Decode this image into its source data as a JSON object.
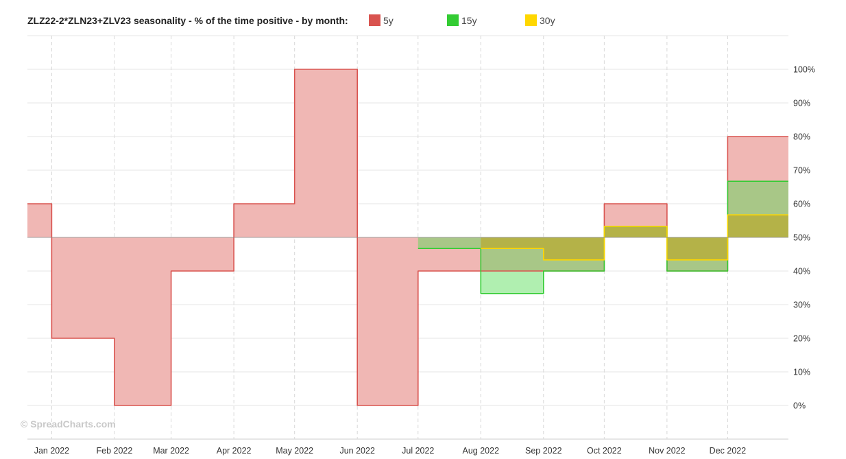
{
  "chart_data": {
    "type": "area",
    "title": "ZLZ22-2*ZLN23+ZLV23 seasonality - % of the time positive - by month:",
    "baseline": 50,
    "ylim": [
      -10,
      110
    ],
    "yticks": [
      0,
      10,
      20,
      30,
      40,
      50,
      60,
      70,
      80,
      90,
      100
    ],
    "y_unit": "%",
    "x_range": [
      "2021-12-20",
      "2022-12-31"
    ],
    "x_ticks": [
      {
        "date": "2022-01-01",
        "label": "Jan 2022"
      },
      {
        "date": "2022-02-01",
        "label": "Feb 2022"
      },
      {
        "date": "2022-03-01",
        "label": "Mar 2022"
      },
      {
        "date": "2022-04-01",
        "label": "Apr 2022"
      },
      {
        "date": "2022-05-01",
        "label": "May 2022"
      },
      {
        "date": "2022-06-01",
        "label": "Jun 2022"
      },
      {
        "date": "2022-07-01",
        "label": "Jul 2022"
      },
      {
        "date": "2022-08-01",
        "label": "Aug 2022"
      },
      {
        "date": "2022-09-01",
        "label": "Sep 2022"
      },
      {
        "date": "2022-10-01",
        "label": "Oct 2022"
      },
      {
        "date": "2022-11-01",
        "label": "Nov 2022"
      },
      {
        "date": "2022-12-01",
        "label": "Dec 2022"
      }
    ],
    "legend_position": "top",
    "grid": true,
    "series": [
      {
        "name": "5y",
        "color": "#d9534f",
        "fill": "#f0b7b4",
        "steps": [
          {
            "from": "2021-12-20",
            "to": "2022-01-01",
            "value": 60
          },
          {
            "from": "2022-01-01",
            "to": "2022-02-01",
            "value": 20
          },
          {
            "from": "2022-02-01",
            "to": "2022-03-01",
            "value": 0
          },
          {
            "from": "2022-03-01",
            "to": "2022-04-01",
            "value": 40
          },
          {
            "from": "2022-04-01",
            "to": "2022-05-01",
            "value": 60
          },
          {
            "from": "2022-05-01",
            "to": "2022-06-01",
            "value": 100
          },
          {
            "from": "2022-06-01",
            "to": "2022-07-01",
            "value": 0
          },
          {
            "from": "2022-07-01",
            "to": "2022-10-01",
            "value": 40
          },
          {
            "from": "2022-10-01",
            "to": "2022-11-01",
            "value": 60
          },
          {
            "from": "2022-11-01",
            "to": "2022-12-01",
            "value": 40
          },
          {
            "from": "2022-12-01",
            "to": "2022-12-31",
            "value": 80
          }
        ]
      },
      {
        "name": "15y",
        "color": "#33cc33",
        "fill": "rgba(80,220,80,0.45)",
        "steps": [
          {
            "from": "2022-07-01",
            "to": "2022-08-01",
            "value": 46.7
          },
          {
            "from": "2022-08-01",
            "to": "2022-09-01",
            "value": 33.3
          },
          {
            "from": "2022-09-01",
            "to": "2022-10-01",
            "value": 40
          },
          {
            "from": "2022-10-01",
            "to": "2022-11-01",
            "value": 53.3
          },
          {
            "from": "2022-11-01",
            "to": "2022-12-01",
            "value": 40
          },
          {
            "from": "2022-12-01",
            "to": "2022-12-31",
            "value": 66.7
          }
        ]
      },
      {
        "name": "30y",
        "color": "#ffd700",
        "fill": "rgba(190,160,20,0.55)",
        "steps": [
          {
            "from": "2022-08-01",
            "to": "2022-09-01",
            "value": 46.7
          },
          {
            "from": "2022-09-01",
            "to": "2022-10-01",
            "value": 43.3
          },
          {
            "from": "2022-10-01",
            "to": "2022-11-01",
            "value": 53.3
          },
          {
            "from": "2022-11-01",
            "to": "2022-12-01",
            "value": 43.3
          },
          {
            "from": "2022-12-01",
            "to": "2022-12-31",
            "value": 56.7
          }
        ]
      }
    ]
  },
  "watermark": "© SpreadCharts.com"
}
